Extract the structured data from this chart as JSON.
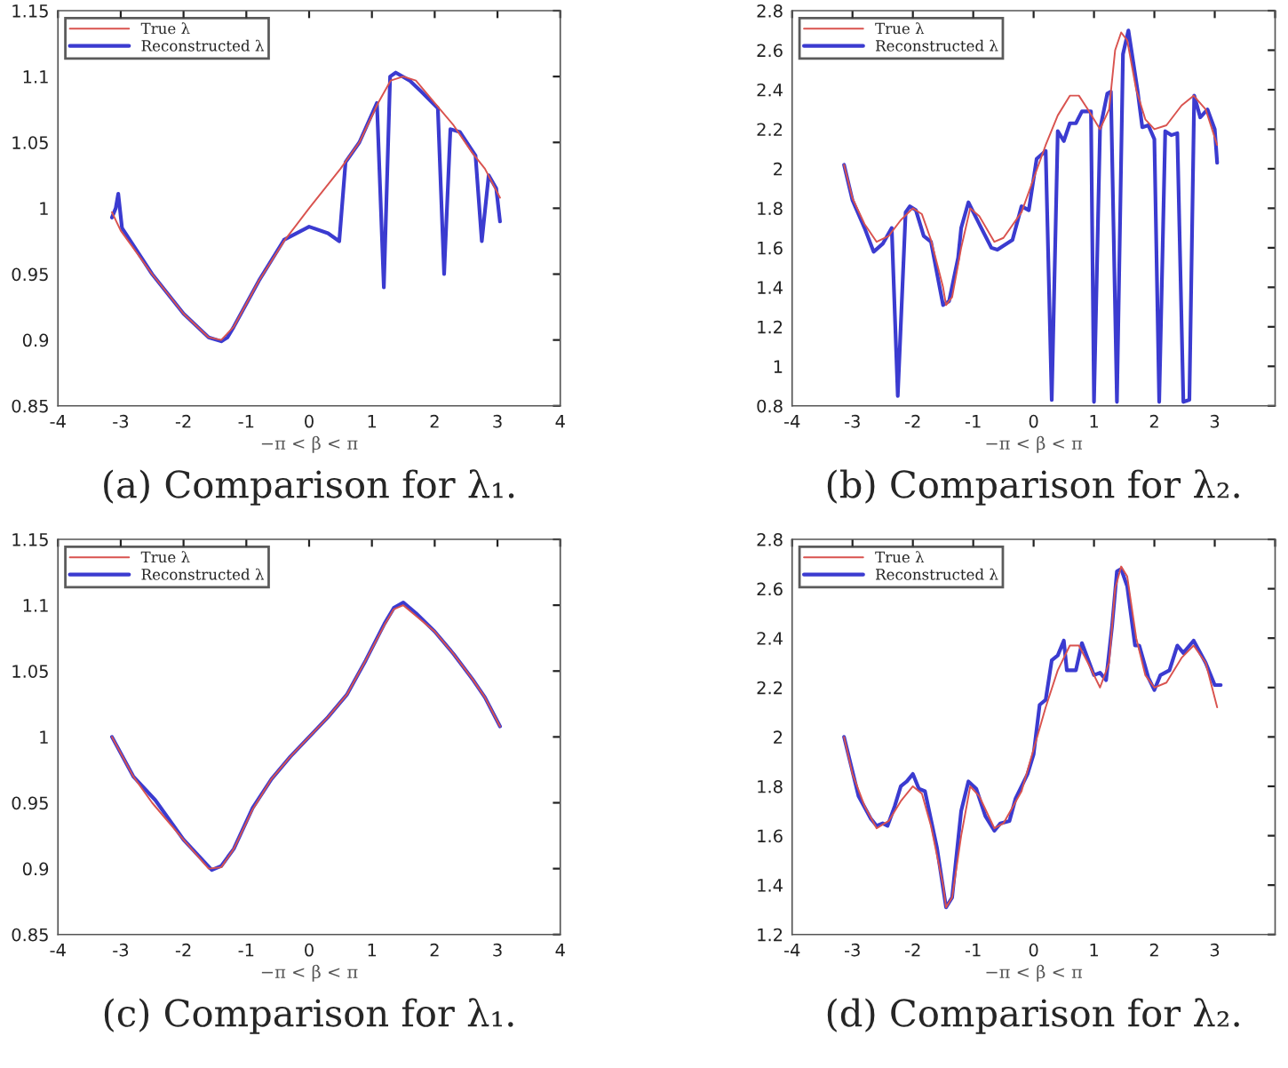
{
  "chart_data": [
    {
      "type": "line",
      "title": "(a) Comparison for λ₁.",
      "xlabel": "−π < β < π",
      "xlim": [
        -4,
        4
      ],
      "xticks": [
        -4,
        -3,
        -2,
        -1,
        0,
        1,
        2,
        3,
        4
      ],
      "ylim": [
        0.85,
        1.15
      ],
      "yticks": [
        0.85,
        0.9,
        0.95,
        1,
        1.05,
        1.1,
        1.15
      ],
      "legend": "top left",
      "grid": false,
      "series": [
        {
          "name": "True λ",
          "color": "#d9534f",
          "x": [
            -3.14,
            -3.0,
            -2.5,
            -2.0,
            -1.6,
            -1.4,
            -1.2,
            -0.8,
            -0.4,
            0,
            0.5,
            0.8,
            1.1,
            1.3,
            1.5,
            1.7,
            2.0,
            2.3,
            2.6,
            2.8,
            3.04
          ],
          "values": [
            0.997,
            0.983,
            0.95,
            0.92,
            0.902,
            0.9,
            0.91,
            0.945,
            0.975,
            1.0,
            1.03,
            1.05,
            1.08,
            1.097,
            1.1,
            1.097,
            1.08,
            1.063,
            1.042,
            1.03,
            1.008
          ]
        },
        {
          "name": "Reconstructed λ",
          "color": "#3b3bd0",
          "x": [
            -3.14,
            -3.08,
            -3.04,
            -2.98,
            -2.5,
            -2.0,
            -1.6,
            -1.4,
            -1.3,
            -1.2,
            -0.8,
            -0.4,
            0,
            0.3,
            0.48,
            0.58,
            0.8,
            1.08,
            1.19,
            1.29,
            1.38,
            1.6,
            1.8,
            2.05,
            2.15,
            2.25,
            2.4,
            2.65,
            2.75,
            2.86,
            2.98,
            3.04
          ],
          "values": [
            0.993,
            1.0,
            1.011,
            0.985,
            0.95,
            0.92,
            0.902,
            0.899,
            0.902,
            0.91,
            0.945,
            0.976,
            0.986,
            0.981,
            0.975,
            1.035,
            1.05,
            1.08,
            0.94,
            1.1,
            1.103,
            1.097,
            1.088,
            1.076,
            0.95,
            1.06,
            1.058,
            1.04,
            0.975,
            1.025,
            1.015,
            0.99
          ]
        }
      ]
    },
    {
      "type": "line",
      "title": "(b) Comparison for λ₂.",
      "xlabel": "−π < β < π",
      "xlim": [
        -4,
        4
      ],
      "xticks": [
        -4,
        -3,
        -2,
        -1,
        0,
        1,
        2,
        3,
        {
          "value": 4,
          "label": null
        }
      ],
      "ylim": [
        0.8,
        2.8
      ],
      "yticks": [
        0.8,
        1,
        1.2,
        1.4,
        1.6,
        1.8,
        2,
        2.2,
        2.4,
        2.6,
        2.8
      ],
      "legend": "top left",
      "grid": false,
      "series": [
        {
          "name": "True λ",
          "color": "#d9534f",
          "x": [
            -3.14,
            -3.0,
            -2.8,
            -2.6,
            -2.4,
            -2.2,
            -2.0,
            -1.85,
            -1.7,
            -1.5,
            -1.45,
            -1.35,
            -1.2,
            -1.05,
            -0.9,
            -0.65,
            -0.5,
            -0.2,
            0,
            0.2,
            0.4,
            0.6,
            0.75,
            0.9,
            1.1,
            1.25,
            1.35,
            1.45,
            1.55,
            1.7,
            1.85,
            2.0,
            2.2,
            2.45,
            2.65,
            2.85,
            3.04
          ],
          "values": [
            2.02,
            1.85,
            1.72,
            1.63,
            1.66,
            1.74,
            1.8,
            1.77,
            1.64,
            1.4,
            1.31,
            1.35,
            1.6,
            1.8,
            1.76,
            1.63,
            1.65,
            1.78,
            1.95,
            2.12,
            2.27,
            2.37,
            2.37,
            2.3,
            2.2,
            2.3,
            2.6,
            2.69,
            2.65,
            2.4,
            2.25,
            2.2,
            2.22,
            2.32,
            2.37,
            2.3,
            2.12
          ]
        },
        {
          "name": "Reconstructed λ",
          "color": "#3b3bd0",
          "x": [
            -3.14,
            -3.0,
            -2.8,
            -2.65,
            -2.5,
            -2.35,
            -2.25,
            -2.12,
            -2.05,
            -1.95,
            -1.82,
            -1.7,
            -1.5,
            -1.4,
            -1.25,
            -1.2,
            -1.08,
            -0.9,
            -0.7,
            -0.6,
            -0.35,
            -0.2,
            -0.08,
            0.05,
            0.2,
            0.3,
            0.4,
            0.5,
            0.6,
            0.7,
            0.8,
            0.95,
            1.0,
            1.1,
            1.22,
            1.28,
            1.38,
            1.48,
            1.57,
            1.72,
            1.8,
            1.9,
            2.0,
            2.08,
            2.18,
            2.28,
            2.38,
            2.48,
            2.58,
            2.66,
            2.76,
            2.88,
            3.0,
            3.04
          ],
          "values": [
            2.02,
            1.84,
            1.7,
            1.58,
            1.62,
            1.7,
            0.85,
            1.78,
            1.81,
            1.79,
            1.66,
            1.63,
            1.31,
            1.33,
            1.55,
            1.7,
            1.83,
            1.72,
            1.6,
            1.59,
            1.64,
            1.81,
            1.79,
            2.05,
            2.09,
            0.83,
            2.19,
            2.14,
            2.23,
            2.23,
            2.29,
            2.29,
            0.82,
            2.2,
            2.38,
            2.39,
            0.82,
            2.58,
            2.7,
            2.4,
            2.21,
            2.22,
            2.15,
            0.82,
            2.19,
            2.17,
            2.18,
            0.82,
            0.83,
            2.37,
            2.26,
            2.3,
            2.2,
            2.03
          ]
        }
      ]
    },
    {
      "type": "line",
      "title": "(c) Comparison for λ₁.",
      "xlabel": "−π < β < π",
      "xlim": [
        -4,
        4
      ],
      "xticks": [
        -4,
        -3,
        -2,
        -1,
        0,
        1,
        2,
        3,
        4
      ],
      "ylim": [
        0.85,
        1.15
      ],
      "yticks": [
        0.85,
        0.9,
        0.95,
        1,
        1.05,
        1.1,
        1.15
      ],
      "legend": "top left",
      "grid": false,
      "series": [
        {
          "name": "True λ",
          "color": "#d9534f",
          "x": [
            -3.14,
            -2.8,
            -2.5,
            -2.0,
            -1.6,
            -1.4,
            -1.2,
            -0.9,
            -0.6,
            -0.3,
            0,
            0.3,
            0.6,
            0.9,
            1.2,
            1.35,
            1.5,
            1.7,
            2.0,
            2.3,
            2.6,
            2.8,
            3.04
          ],
          "values": [
            1.0,
            0.97,
            0.95,
            0.922,
            0.9,
            0.901,
            0.915,
            0.945,
            0.968,
            0.985,
            1.0,
            1.015,
            1.032,
            1.058,
            1.085,
            1.097,
            1.1,
            1.092,
            1.08,
            1.063,
            1.044,
            1.03,
            1.008
          ]
        },
        {
          "name": "Reconstructed λ",
          "color": "#3b3bd0",
          "x": [
            -3.14,
            -2.8,
            -2.45,
            -2.0,
            -1.55,
            -1.4,
            -1.2,
            -0.9,
            -0.6,
            -0.3,
            0,
            0.3,
            0.6,
            0.9,
            1.2,
            1.35,
            1.5,
            1.7,
            2.0,
            2.3,
            2.6,
            2.8,
            3.04
          ],
          "values": [
            1.0,
            0.97,
            0.952,
            0.922,
            0.899,
            0.902,
            0.915,
            0.946,
            0.968,
            0.985,
            1.0,
            1.015,
            1.032,
            1.058,
            1.086,
            1.098,
            1.102,
            1.094,
            1.08,
            1.063,
            1.044,
            1.03,
            1.008
          ]
        }
      ]
    },
    {
      "type": "line",
      "title": "(d) Comparison for λ₂.",
      "xlabel": "−π < β < π",
      "xlim": [
        -4,
        4
      ],
      "xticks": [
        -4,
        -3,
        -2,
        -1,
        0,
        1,
        2,
        3,
        {
          "value": 4,
          "label": null
        }
      ],
      "ylim": [
        1.2,
        2.8
      ],
      "yticks": [
        1.2,
        1.4,
        1.6,
        1.8,
        2,
        2.2,
        2.4,
        2.6,
        2.8
      ],
      "legend": "top left",
      "grid": false,
      "series": [
        {
          "name": "True λ",
          "color": "#d9534f",
          "x": [
            -3.14,
            -3.0,
            -2.8,
            -2.6,
            -2.4,
            -2.2,
            -2.0,
            -1.85,
            -1.7,
            -1.5,
            -1.45,
            -1.35,
            -1.2,
            -1.05,
            -0.9,
            -0.65,
            -0.5,
            -0.2,
            0,
            0.2,
            0.4,
            0.6,
            0.75,
            0.9,
            1.1,
            1.25,
            1.35,
            1.45,
            1.55,
            1.7,
            1.85,
            2.0,
            2.2,
            2.45,
            2.65,
            2.85,
            3.04
          ],
          "values": [
            2.0,
            1.85,
            1.72,
            1.63,
            1.66,
            1.74,
            1.8,
            1.77,
            1.64,
            1.4,
            1.31,
            1.35,
            1.6,
            1.8,
            1.76,
            1.63,
            1.65,
            1.78,
            1.95,
            2.12,
            2.27,
            2.37,
            2.37,
            2.3,
            2.2,
            2.3,
            2.6,
            2.69,
            2.65,
            2.4,
            2.25,
            2.2,
            2.22,
            2.32,
            2.37,
            2.3,
            2.12
          ]
        },
        {
          "name": "Reconstructed λ",
          "color": "#3b3bd0",
          "x": [
            -3.14,
            -2.9,
            -2.7,
            -2.6,
            -2.5,
            -2.42,
            -2.3,
            -2.2,
            -2.1,
            -2.0,
            -1.9,
            -1.8,
            -1.6,
            -1.45,
            -1.35,
            -1.2,
            -1.08,
            -0.95,
            -0.8,
            -0.65,
            -0.55,
            -0.4,
            -0.3,
            -0.1,
            0.0,
            0.1,
            0.2,
            0.3,
            0.4,
            0.5,
            0.55,
            0.7,
            0.8,
            1.0,
            1.1,
            1.2,
            1.3,
            1.38,
            1.45,
            1.55,
            1.68,
            1.75,
            1.9,
            2.0,
            2.1,
            2.25,
            2.38,
            2.48,
            2.65,
            2.85,
            3.0,
            3.1
          ],
          "values": [
            2.0,
            1.76,
            1.67,
            1.64,
            1.65,
            1.64,
            1.72,
            1.8,
            1.82,
            1.85,
            1.79,
            1.78,
            1.55,
            1.31,
            1.35,
            1.7,
            1.82,
            1.79,
            1.68,
            1.62,
            1.65,
            1.66,
            1.75,
            1.85,
            1.93,
            2.13,
            2.15,
            2.31,
            2.33,
            2.39,
            2.27,
            2.27,
            2.38,
            2.25,
            2.26,
            2.23,
            2.45,
            2.67,
            2.68,
            2.61,
            2.37,
            2.37,
            2.24,
            2.19,
            2.25,
            2.27,
            2.37,
            2.34,
            2.39,
            2.3,
            2.21,
            2.21
          ]
        }
      ]
    }
  ]
}
